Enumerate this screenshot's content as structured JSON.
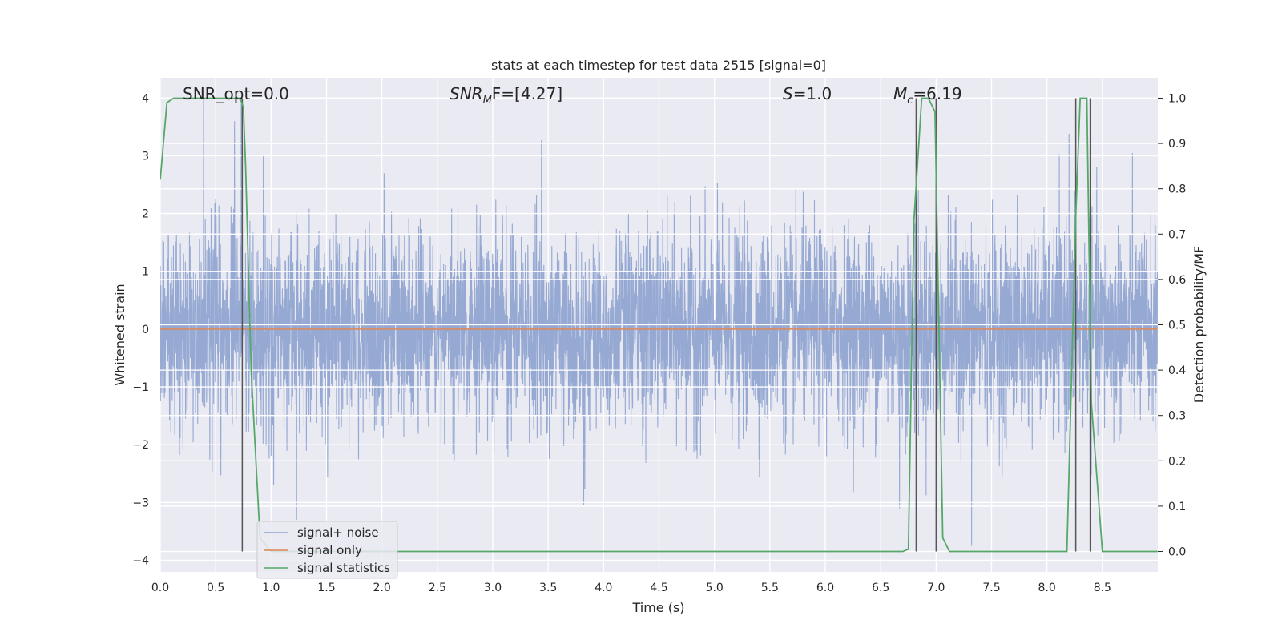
{
  "chart_data": {
    "type": "line",
    "title": "stats at each timestep for test data 2515 [signal=0]",
    "xlabel": "Time (s)",
    "ylabel": "Whitened strain",
    "ylabel_right": "Detection probability/MF",
    "xlim": [
      0.0,
      9.0
    ],
    "ylim": [
      -4.2,
      4.35
    ],
    "ylim_right": [
      -0.045,
      1.045
    ],
    "grid": true,
    "legend_placement": "lower-left",
    "x_ticks": [
      "0.0",
      "0.5",
      "1.0",
      "1.5",
      "2.0",
      "2.5",
      "3.0",
      "3.5",
      "4.0",
      "4.5",
      "5.0",
      "5.5",
      "6.0",
      "6.5",
      "7.0",
      "7.5",
      "8.0",
      "8.5"
    ],
    "y_ticks": [
      "−4",
      "−3",
      "−2",
      "−1",
      "0",
      "1",
      "2",
      "3",
      "4"
    ],
    "y_ticks_right": [
      "0.0",
      "0.1",
      "0.2",
      "0.3",
      "0.4",
      "0.5",
      "0.6",
      "0.7",
      "0.8",
      "0.9",
      "1.0"
    ],
    "annotations": [
      {
        "id": "snr_opt",
        "label": "SNR_opt=0.0"
      },
      {
        "id": "snr_mf",
        "label_main": "SNR",
        "label_sub": "M",
        "label_rest": "F=[4.27]"
      },
      {
        "id": "s",
        "label_main": "S",
        "label_rest": "=1.0"
      },
      {
        "id": "mc",
        "label_main": "M",
        "label_sub": "c",
        "label_rest": "=6.19"
      }
    ],
    "series": [
      {
        "name": "signal+ noise",
        "axis": "left",
        "color": "#8da2cf",
        "sample_rate_hz": 512,
        "t_start": 0.0,
        "t_end": 8.998,
        "envelope_typical": [
          -1.4,
          1.4
        ],
        "peaks": [
          {
            "x": 0.39,
            "y": 3.98
          },
          {
            "x": 0.67,
            "y": 3.6
          },
          {
            "x": 0.73,
            "y": 3.9
          },
          {
            "x": 3.44,
            "y": 3.27
          },
          {
            "x": 8.2,
            "y": 3.38
          },
          {
            "x": 1.23,
            "y": -3.3
          },
          {
            "x": 3.82,
            "y": -3.05
          },
          {
            "x": 7.32,
            "y": -3.75
          },
          {
            "x": 6.67,
            "y": -3.1
          }
        ]
      },
      {
        "name": "signal only",
        "axis": "left",
        "color": "#dd8452",
        "x": [
          0.0,
          8.998
        ],
        "y": [
          0.0,
          0.0
        ]
      },
      {
        "name": "signal statistics",
        "axis": "right",
        "color": "#55a868",
        "x": [
          0.0,
          0.06,
          0.12,
          0.6,
          0.72,
          0.75,
          0.77,
          0.82,
          0.9,
          1.0,
          6.7,
          6.75,
          6.8,
          6.87,
          6.93,
          6.99,
          7.06,
          7.12,
          8.18,
          8.26,
          8.3,
          8.36,
          8.4,
          8.5,
          8.998
        ],
        "y": [
          0.82,
          0.99,
          1.0,
          1.0,
          1.0,
          0.98,
          0.85,
          0.4,
          0.03,
          0.0,
          0.0,
          0.005,
          0.73,
          1.0,
          1.0,
          0.97,
          0.03,
          0.0,
          0.0,
          0.74,
          1.0,
          1.0,
          0.33,
          0.0,
          0.0
        ]
      }
    ],
    "vlines": {
      "color": "#555555",
      "x": [
        0.74,
        6.82,
        7.0,
        8.26,
        8.39
      ],
      "y_range_right": [
        0.0,
        1.0
      ]
    }
  }
}
